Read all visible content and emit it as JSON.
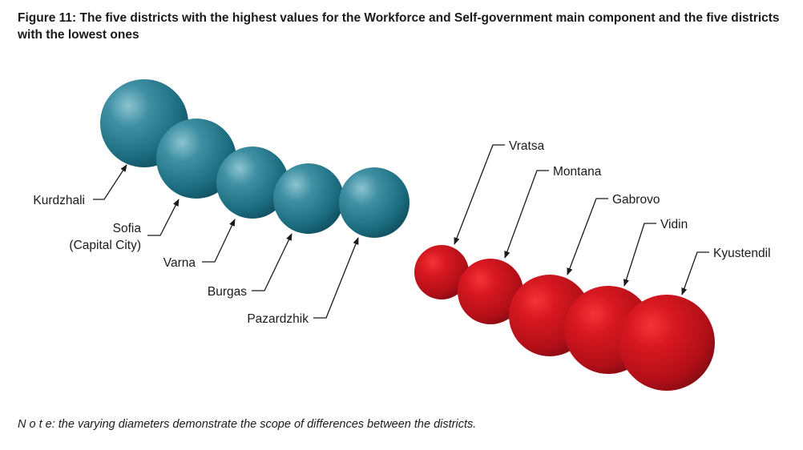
{
  "figure": {
    "title": "Figure 11: The five districts with the highest values for the Workforce and Self-government main component and the five districts with the lowest ones",
    "note_prefix": "N o t e:",
    "note_text": " the varying diameters demonstrate the scope of differences between the districts."
  },
  "colors": {
    "highest_group": "#1f7486",
    "lowest_group": "#c3121c",
    "text": "#1a1a1a"
  },
  "highest": [
    {
      "name": "Kurdzhali"
    },
    {
      "name": "Sofia",
      "name_line2": "(Capital City)"
    },
    {
      "name": "Varna"
    },
    {
      "name": "Burgas"
    },
    {
      "name": "Pazardzhik"
    }
  ],
  "lowest": [
    {
      "name": "Vratsa"
    },
    {
      "name": "Montana"
    },
    {
      "name": "Gabrovo"
    },
    {
      "name": "Vidin"
    },
    {
      "name": "Kyustendil"
    }
  ]
}
